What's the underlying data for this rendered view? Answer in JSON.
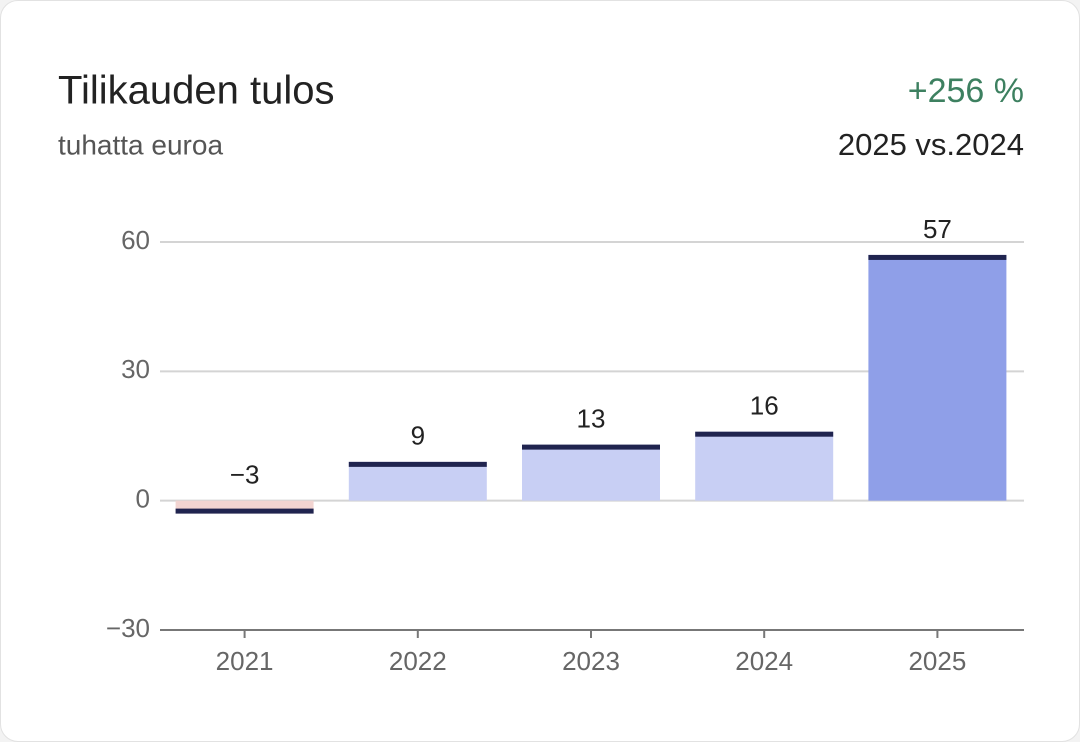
{
  "chart_data": {
    "type": "bar",
    "title": "Tilikauden tulos",
    "subtitle": "tuhatta euroa",
    "change": "+256 %",
    "comparison": "2025 vs.2024",
    "categories": [
      "2021",
      "2022",
      "2023",
      "2024",
      "2025"
    ],
    "values": [
      -3,
      9,
      13,
      16,
      57
    ],
    "value_labels": [
      "−3",
      "9",
      "13",
      "16",
      "57"
    ],
    "colors": [
      "#f2d4d1",
      "#c8cff4",
      "#c8cff4",
      "#c8cff4",
      "#8f9fe8"
    ],
    "cap_color": "#20244f",
    "change_color": "#3d8060",
    "ylim": [
      -30,
      60
    ],
    "yticks": [
      60,
      30,
      0,
      {
        "value": -30,
        "label": "−30"
      }
    ],
    "grid": true
  }
}
